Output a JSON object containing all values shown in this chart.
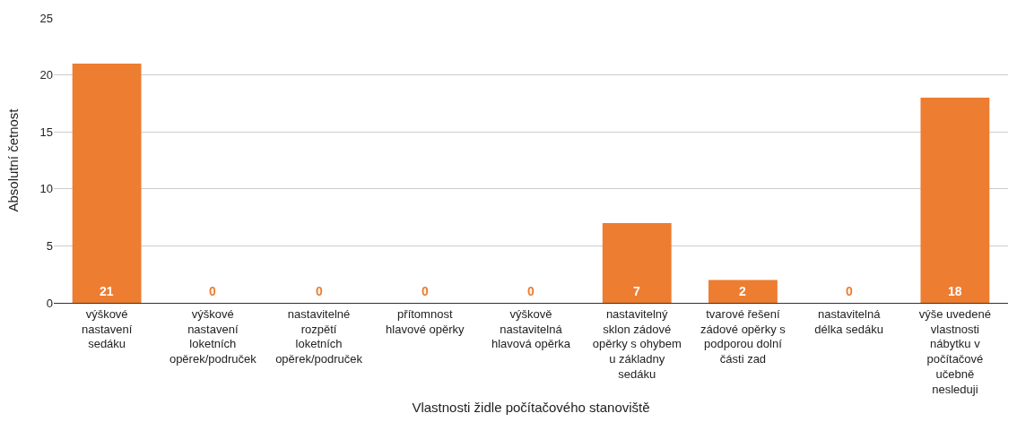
{
  "chart_data": {
    "type": "bar",
    "xlabel": "Vlastnosti židle počítačového stanoviště",
    "ylabel": "Absolutní četnost",
    "categories": [
      "výškové nastavení sedáku",
      "výškové nastavení loketních opěrek/područek",
      "nastavitelné rozpětí loketních opěrek/područek",
      "přítomnost hlavové opěrky",
      "výškově nastavitelná hlavová opěrka",
      "nastavitelný sklon zádové opěrky s ohybem u základny sedáku",
      "tvarové řešení zádové opěrky s podporou dolní části zad",
      "nastavitelná délka sedáku",
      "výše uvedené vlastnosti nábytku v počítačové učebně nesleduji"
    ],
    "values": [
      21,
      0,
      0,
      0,
      0,
      7,
      2,
      0,
      18
    ],
    "color": "#ed7d31",
    "ylim": [
      0,
      25
    ],
    "yticks": [
      0,
      5,
      10,
      15,
      20,
      25
    ],
    "grid": "y",
    "data_labels": true
  }
}
